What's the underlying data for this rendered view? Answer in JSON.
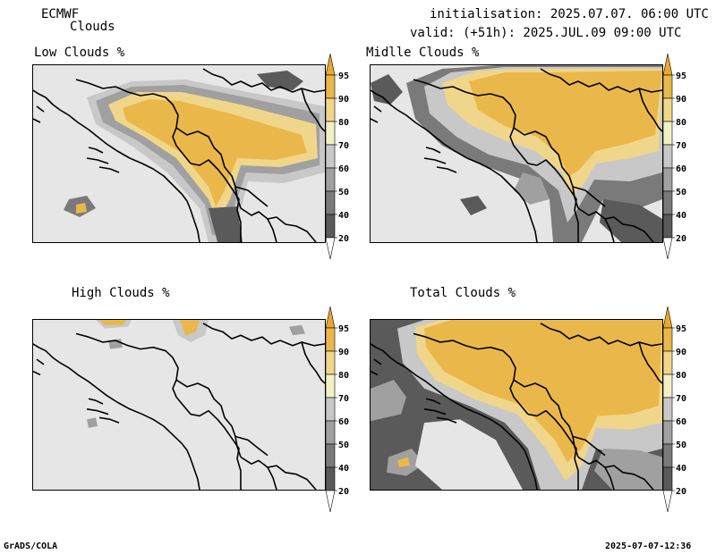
{
  "header": {
    "model": "ECMWF",
    "product": "Clouds",
    "init_line": "initialisation: 2025.07.07. 06:00 UTC",
    "valid_line": "valid: (+51h): 2025.JUL.09 09:00 UTC"
  },
  "panels": [
    {
      "key": "low",
      "title": "Low Clouds %"
    },
    {
      "key": "mid",
      "title": "Midlle Clouds %"
    },
    {
      "key": "high",
      "title": "High Clouds %"
    },
    {
      "key": "total",
      "title": "Total Clouds %"
    }
  ],
  "colorbar": {
    "levels": [
      "20",
      "40",
      "50",
      "60",
      "70",
      "80",
      "90",
      "95"
    ],
    "colors": {
      "c20": "#ffffff",
      "c20_40": "#5a5a5a",
      "c40_50": "#7a7a7a",
      "c50_60": "#a0a0a0",
      "c60_70": "#c8c8c8",
      "c70_80": "#f2f0c4",
      "c80_90": "#f0d68a",
      "c90_95": "#eab84a",
      "c95": "#e8a82a"
    }
  },
  "footer": {
    "left": "GrADS/COLA",
    "right": "2025-07-07-12:36"
  }
}
